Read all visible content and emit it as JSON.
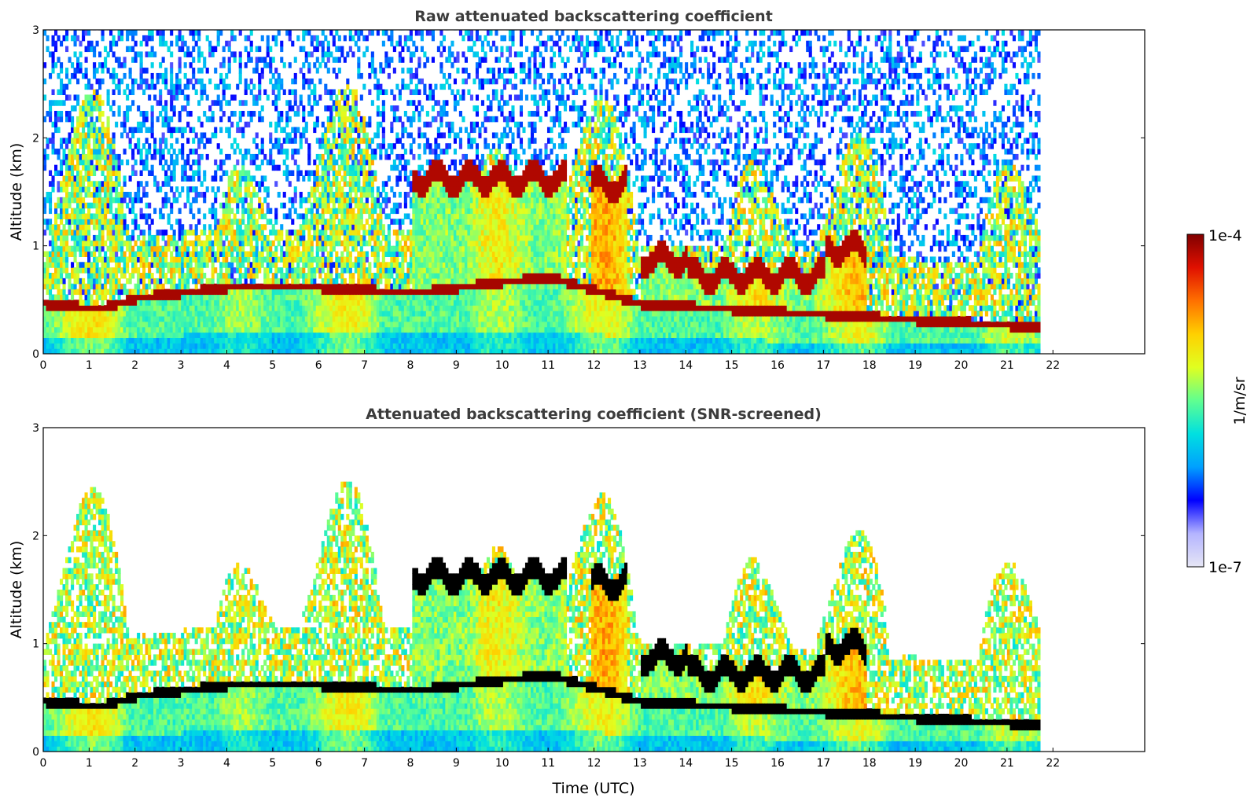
{
  "chart_data": [
    {
      "type": "heatmap",
      "title": "Raw attenuated backscattering coefficient",
      "xlabel": "",
      "ylabel": "Altitude (km)",
      "xlim": [
        0,
        24
      ],
      "ylim": [
        0,
        3
      ],
      "x_ticks": [
        "0",
        "1",
        "2",
        "3",
        "4",
        "5",
        "6",
        "7",
        "8",
        "9",
        "10",
        "11",
        "12",
        "13",
        "14",
        "15",
        "16",
        "17",
        "18",
        "19",
        "20",
        "21",
        "22"
      ],
      "y_ticks": [
        "0",
        "1",
        "2",
        "3"
      ],
      "data_end_time": 21.7,
      "features": {
        "boundary_layer_top_km": [
          [
            0,
            0.4
          ],
          [
            1.2,
            0.35
          ],
          [
            2,
            0.45
          ],
          [
            4,
            0.55
          ],
          [
            6,
            0.55
          ],
          [
            8,
            0.5
          ],
          [
            11,
            0.65
          ],
          [
            13,
            0.4
          ],
          [
            15,
            0.35
          ],
          [
            17,
            0.3
          ],
          [
            19,
            0.25
          ],
          [
            21,
            0.2
          ],
          [
            21.7,
            0.2
          ]
        ],
        "cloud_layers": [
          {
            "start": 8.0,
            "end": 11.4,
            "altitude_km": 1.6
          },
          {
            "start": 11.9,
            "end": 12.7,
            "altitude_km": 1.55
          },
          {
            "start": 13.0,
            "end": 14.0,
            "altitude_km": 0.85
          },
          {
            "start": 14.0,
            "end": 17.0,
            "altitude_km": 0.7
          },
          {
            "start": 17.0,
            "end": 17.9,
            "altitude_km": 0.95
          }
        ]
      }
    },
    {
      "type": "heatmap",
      "title": "Attenuated backscattering coefficient (SNR-screened)",
      "xlabel": "Time (UTC)",
      "ylabel": "Altitude (km)",
      "xlim": [
        0,
        24
      ],
      "ylim": [
        0,
        3
      ],
      "x_ticks": [
        "0",
        "1",
        "2",
        "3",
        "4",
        "5",
        "6",
        "7",
        "8",
        "9",
        "10",
        "11",
        "12",
        "13",
        "14",
        "15",
        "16",
        "17",
        "18",
        "19",
        "20",
        "21",
        "22"
      ],
      "y_ticks": [
        "0",
        "1",
        "2",
        "3"
      ],
      "data_end_time": 21.7
    }
  ],
  "colorbar": {
    "label": "1/m/sr",
    "max_label": "1e-4",
    "min_label": "1e-7",
    "scale": "log",
    "range": [
      1e-07,
      0.0001
    ],
    "colors": [
      "#e6e6f5",
      "#b4b4ff",
      "#0000ff",
      "#00a0ff",
      "#00e0e0",
      "#60ff90",
      "#e0ff20",
      "#ffd000",
      "#ff7000",
      "#e01000",
      "#800000"
    ]
  }
}
